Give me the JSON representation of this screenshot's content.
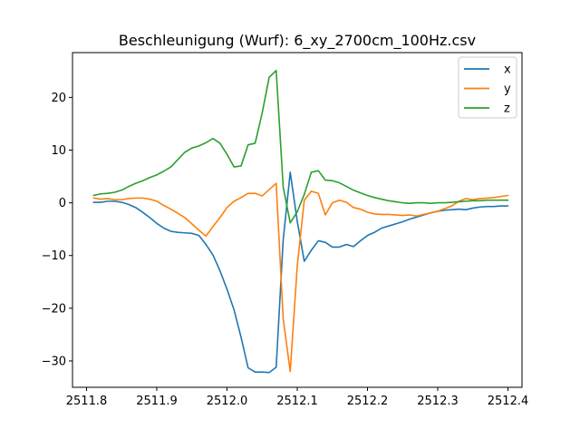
{
  "chart_data": {
    "type": "line",
    "title": "Beschleunigung (Wurf): 6_xy_2700cm_100Hz.csv",
    "xlabel": "",
    "ylabel": "",
    "xlim": [
      2511.78,
      2512.42
    ],
    "ylim": [
      -35,
      28.5
    ],
    "xticks": [
      2511.8,
      2511.9,
      2512.0,
      2512.1,
      2512.2,
      2512.3,
      2512.4
    ],
    "xtick_labels": [
      "2511.8",
      "2511.9",
      "2512.0",
      "2512.1",
      "2512.2",
      "2512.3",
      "2512.4"
    ],
    "yticks": [
      -30,
      -20,
      -10,
      0,
      10,
      20
    ],
    "ytick_labels": [
      "−30",
      "−20",
      "−10",
      "0",
      "10",
      "20"
    ],
    "grid": false,
    "legend_position": "upper right",
    "series": [
      {
        "name": "x",
        "color": "#1f77b4",
        "points": [
          [
            2511.81,
            0.1
          ],
          [
            2511.82,
            0.1
          ],
          [
            2511.83,
            0.3
          ],
          [
            2511.84,
            0.3
          ],
          [
            2511.85,
            0.1
          ],
          [
            2511.86,
            -0.3
          ],
          [
            2511.87,
            -0.9
          ],
          [
            2511.88,
            -1.8
          ],
          [
            2511.89,
            -2.8
          ],
          [
            2511.9,
            -3.9
          ],
          [
            2511.91,
            -4.8
          ],
          [
            2511.92,
            -5.4
          ],
          [
            2511.93,
            -5.6
          ],
          [
            2511.94,
            -5.7
          ],
          [
            2511.95,
            -5.8
          ],
          [
            2511.96,
            -6.2
          ],
          [
            2511.97,
            -7.9
          ],
          [
            2511.98,
            -9.9
          ],
          [
            2511.99,
            -12.9
          ],
          [
            2512.0,
            -16.4
          ],
          [
            2512.01,
            -20.3
          ],
          [
            2512.02,
            -25.5
          ],
          [
            2512.03,
            -31.3
          ],
          [
            2512.04,
            -32.1
          ],
          [
            2512.05,
            -32.1
          ],
          [
            2512.06,
            -32.2
          ],
          [
            2512.07,
            -31.2
          ],
          [
            2512.08,
            -7.0
          ],
          [
            2512.09,
            5.8
          ],
          [
            2512.1,
            -3.5
          ],
          [
            2512.11,
            -11.1
          ],
          [
            2512.12,
            -9.0
          ],
          [
            2512.13,
            -7.2
          ],
          [
            2512.14,
            -7.5
          ],
          [
            2512.15,
            -8.4
          ],
          [
            2512.16,
            -8.4
          ],
          [
            2512.17,
            -7.9
          ],
          [
            2512.18,
            -8.3
          ],
          [
            2512.19,
            -7.2
          ],
          [
            2512.2,
            -6.2
          ],
          [
            2512.21,
            -5.6
          ],
          [
            2512.22,
            -4.8
          ],
          [
            2512.23,
            -4.4
          ],
          [
            2512.24,
            -4.0
          ],
          [
            2512.25,
            -3.6
          ],
          [
            2512.26,
            -3.1
          ],
          [
            2512.27,
            -2.7
          ],
          [
            2512.28,
            -2.3
          ],
          [
            2512.29,
            -1.9
          ],
          [
            2512.3,
            -1.6
          ],
          [
            2512.31,
            -1.4
          ],
          [
            2512.32,
            -1.3
          ],
          [
            2512.33,
            -1.2
          ],
          [
            2512.34,
            -1.3
          ],
          [
            2512.35,
            -1.0
          ],
          [
            2512.36,
            -0.8
          ],
          [
            2512.37,
            -0.7
          ],
          [
            2512.38,
            -0.7
          ],
          [
            2512.39,
            -0.6
          ],
          [
            2512.4,
            -0.6
          ]
        ]
      },
      {
        "name": "y",
        "color": "#ff7f0e",
        "points": [
          [
            2511.81,
            0.9
          ],
          [
            2511.82,
            0.7
          ],
          [
            2511.83,
            0.8
          ],
          [
            2511.84,
            0.6
          ],
          [
            2511.85,
            0.6
          ],
          [
            2511.86,
            0.8
          ],
          [
            2511.87,
            0.9
          ],
          [
            2511.88,
            0.9
          ],
          [
            2511.89,
            0.7
          ],
          [
            2511.9,
            0.3
          ],
          [
            2511.91,
            -0.5
          ],
          [
            2511.92,
            -1.2
          ],
          [
            2511.93,
            -2.0
          ],
          [
            2511.94,
            -2.8
          ],
          [
            2511.95,
            -4.0
          ],
          [
            2511.96,
            -5.2
          ],
          [
            2511.97,
            -6.3
          ],
          [
            2511.98,
            -4.5
          ],
          [
            2511.99,
            -2.8
          ],
          [
            2512.0,
            -0.9
          ],
          [
            2512.01,
            0.3
          ],
          [
            2512.02,
            1.0
          ],
          [
            2512.03,
            1.8
          ],
          [
            2512.04,
            1.8
          ],
          [
            2512.05,
            1.3
          ],
          [
            2512.06,
            2.5
          ],
          [
            2512.07,
            3.7
          ],
          [
            2512.08,
            -22.0
          ],
          [
            2512.09,
            -32.0
          ],
          [
            2512.1,
            -12.0
          ],
          [
            2512.11,
            0.5
          ],
          [
            2512.12,
            2.2
          ],
          [
            2512.13,
            1.8
          ],
          [
            2512.14,
            -2.3
          ],
          [
            2512.15,
            0.0
          ],
          [
            2512.16,
            0.5
          ],
          [
            2512.17,
            0.1
          ],
          [
            2512.18,
            -0.9
          ],
          [
            2512.19,
            -1.2
          ],
          [
            2512.2,
            -1.8
          ],
          [
            2512.21,
            -2.1
          ],
          [
            2512.22,
            -2.2
          ],
          [
            2512.23,
            -2.2
          ],
          [
            2512.24,
            -2.3
          ],
          [
            2512.25,
            -2.4
          ],
          [
            2512.26,
            -2.3
          ],
          [
            2512.27,
            -2.5
          ],
          [
            2512.28,
            -2.2
          ],
          [
            2512.29,
            -1.9
          ],
          [
            2512.3,
            -1.6
          ],
          [
            2512.31,
            -1.1
          ],
          [
            2512.32,
            -0.6
          ],
          [
            2512.33,
            0.3
          ],
          [
            2512.34,
            0.8
          ],
          [
            2512.35,
            0.6
          ],
          [
            2512.36,
            0.8
          ],
          [
            2512.37,
            0.9
          ],
          [
            2512.38,
            1.0
          ],
          [
            2512.39,
            1.2
          ],
          [
            2512.4,
            1.4
          ]
        ]
      },
      {
        "name": "z",
        "color": "#2ca02c",
        "points": [
          [
            2511.81,
            1.4
          ],
          [
            2511.82,
            1.7
          ],
          [
            2511.83,
            1.8
          ],
          [
            2511.84,
            2.0
          ],
          [
            2511.85,
            2.4
          ],
          [
            2511.86,
            3.1
          ],
          [
            2511.87,
            3.7
          ],
          [
            2511.88,
            4.2
          ],
          [
            2511.89,
            4.8
          ],
          [
            2511.9,
            5.3
          ],
          [
            2511.91,
            6.0
          ],
          [
            2511.92,
            6.8
          ],
          [
            2511.93,
            8.2
          ],
          [
            2511.94,
            9.6
          ],
          [
            2511.95,
            10.4
          ],
          [
            2511.96,
            10.8
          ],
          [
            2511.97,
            11.4
          ],
          [
            2511.98,
            12.2
          ],
          [
            2511.99,
            11.3
          ],
          [
            2512.0,
            9.2
          ],
          [
            2512.01,
            6.8
          ],
          [
            2512.02,
            7.0
          ],
          [
            2512.03,
            11.0
          ],
          [
            2512.04,
            11.3
          ],
          [
            2512.05,
            17.0
          ],
          [
            2512.06,
            23.8
          ],
          [
            2512.07,
            25.1
          ],
          [
            2512.08,
            3.0
          ],
          [
            2512.09,
            -3.8
          ],
          [
            2512.1,
            -1.7
          ],
          [
            2512.11,
            1.6
          ],
          [
            2512.12,
            5.8
          ],
          [
            2512.13,
            6.1
          ],
          [
            2512.14,
            4.3
          ],
          [
            2512.15,
            4.2
          ],
          [
            2512.16,
            3.8
          ],
          [
            2512.17,
            3.1
          ],
          [
            2512.18,
            2.4
          ],
          [
            2512.19,
            1.9
          ],
          [
            2512.2,
            1.4
          ],
          [
            2512.21,
            1.0
          ],
          [
            2512.22,
            0.7
          ],
          [
            2512.23,
            0.4
          ],
          [
            2512.24,
            0.2
          ],
          [
            2512.25,
            0.0
          ],
          [
            2512.26,
            -0.1
          ],
          [
            2512.27,
            0.0
          ],
          [
            2512.28,
            0.0
          ],
          [
            2512.29,
            -0.1
          ],
          [
            2512.3,
            0.0
          ],
          [
            2512.31,
            0.0
          ],
          [
            2512.32,
            0.1
          ],
          [
            2512.33,
            0.2
          ],
          [
            2512.34,
            0.3
          ],
          [
            2512.35,
            0.4
          ],
          [
            2512.36,
            0.4
          ],
          [
            2512.37,
            0.5
          ],
          [
            2512.38,
            0.5
          ],
          [
            2512.39,
            0.5
          ],
          [
            2512.4,
            0.5
          ]
        ]
      }
    ]
  }
}
